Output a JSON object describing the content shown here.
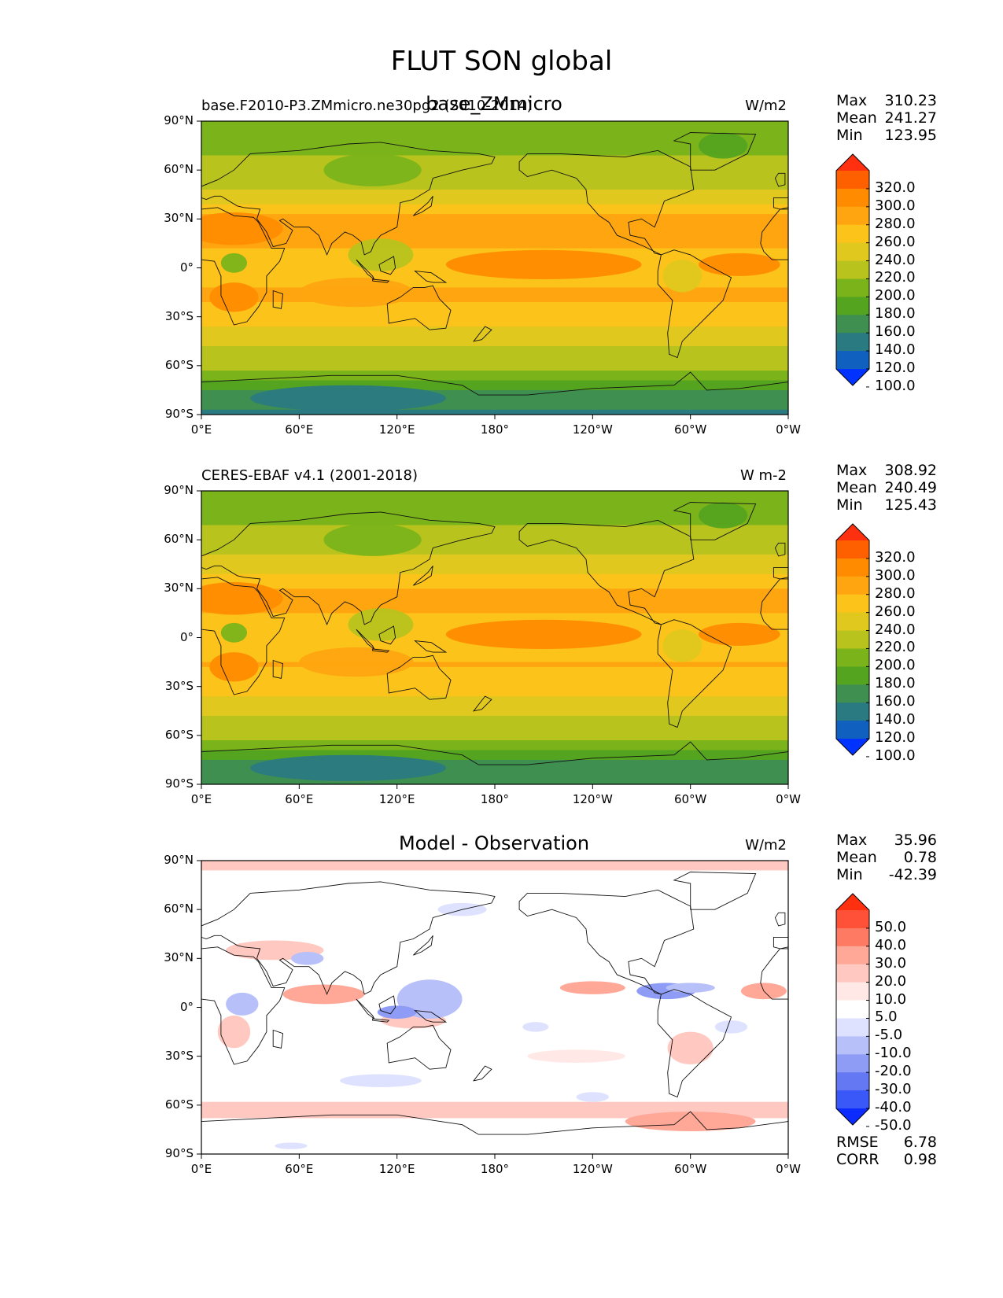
{
  "figure_title": "FLUT SON global",
  "panels": [
    {
      "id": "test",
      "left_title": "base.F2010-P3.ZMmicro.ne30pg2 (2010-2014)",
      "center_title": "base_ZMmicro",
      "units": "W/m2",
      "stats": {
        "labels": [
          "Max",
          "Mean",
          "Min"
        ],
        "values": [
          "310.23",
          "241.27",
          "123.95"
        ]
      },
      "colorbar": {
        "ticks": [
          "320.0",
          "300.0",
          "280.0",
          "260.0",
          "240.0",
          "220.0",
          "200.0",
          "180.0",
          "160.0",
          "140.0",
          "120.0",
          "100.0"
        ],
        "colors": [
          "#fe3010",
          "#fe6000",
          "#ff8c00",
          "#ffa510",
          "#fcc31a",
          "#e0c81e",
          "#b8c31e",
          "#7ab41a",
          "#55a420",
          "#3e8f50",
          "#2a7a82",
          "#1060c0",
          "#0033ff"
        ]
      }
    },
    {
      "id": "reference",
      "left_title": "CERES-EBAF v4.1 (2001-2018)",
      "center_title": "",
      "units": "W m-2",
      "stats": {
        "labels": [
          "Max",
          "Mean",
          "Min"
        ],
        "values": [
          "308.92",
          "240.49",
          "125.43"
        ]
      },
      "colorbar": {
        "ticks": [
          "320.0",
          "300.0",
          "280.0",
          "260.0",
          "240.0",
          "220.0",
          "200.0",
          "180.0",
          "160.0",
          "140.0",
          "120.0",
          "100.0"
        ],
        "colors": [
          "#fe3010",
          "#fe6000",
          "#ff8c00",
          "#ffa510",
          "#fcc31a",
          "#e0c81e",
          "#b8c31e",
          "#7ab41a",
          "#55a420",
          "#3e8f50",
          "#2a7a82",
          "#1060c0",
          "#0033ff"
        ]
      }
    },
    {
      "id": "difference",
      "left_title": "",
      "center_title": "Model - Observation",
      "units": "W/m2",
      "stats": {
        "labels": [
          "Max",
          "Mean",
          "Min"
        ],
        "values": [
          "35.96",
          "0.78",
          "-42.39"
        ]
      },
      "metrics": {
        "labels": [
          "RMSE",
          "CORR"
        ],
        "values": [
          "6.78",
          "0.98"
        ]
      },
      "colorbar": {
        "ticks": [
          "50.0",
          "40.0",
          "30.0",
          "20.0",
          "10.0",
          "5.0",
          "-5.0",
          "-10.0",
          "-20.0",
          "-30.0",
          "-40.0",
          "-50.0"
        ],
        "colors": [
          "#ff3010",
          "#ff5038",
          "#ff7a62",
          "#ffa898",
          "#ffc8c0",
          "#ffe8e6",
          "#ffffff",
          "#dee2ff",
          "#b8c0fa",
          "#8e9cf6",
          "#6478f4",
          "#3a58f8",
          "#0c2cff"
        ]
      }
    }
  ],
  "chart_data": [
    {
      "type": "heatmap",
      "title": "base_ZMmicro",
      "subtitle": "base.F2010-P3.ZMmicro.ne30pg2 (2010-2014)",
      "units": "W/m2",
      "xticks": [
        "0°E",
        "60°E",
        "120°E",
        "180°",
        "120°W",
        "60°W",
        "0°W"
      ],
      "yticks": [
        "90°N",
        "60°N",
        "30°N",
        "0°",
        "30°S",
        "60°S",
        "90°S"
      ],
      "lon_range": [
        0,
        360
      ],
      "lat_range": [
        -90,
        90
      ],
      "zonal_mean_profile": {
        "lat": [
          -90,
          -75,
          -60,
          -45,
          -30,
          -15,
          0,
          15,
          30,
          45,
          60,
          75,
          90
        ],
        "value": [
          135,
          160,
          205,
          225,
          250,
          265,
          240,
          265,
          265,
          225,
          205,
          195,
          185
        ]
      },
      "max": 310.23,
      "mean": 241.27,
      "min": 123.95
    },
    {
      "type": "heatmap",
      "title": "CERES-EBAF v4.1 (2001-2018)",
      "units": "W m-2",
      "xticks": [
        "0°E",
        "60°E",
        "120°E",
        "180°",
        "120°W",
        "60°W",
        "0°W"
      ],
      "yticks": [
        "90°N",
        "60°N",
        "30°N",
        "0°",
        "30°S",
        "60°S",
        "90°S"
      ],
      "lon_range": [
        0,
        360
      ],
      "lat_range": [
        -90,
        90
      ],
      "zonal_mean_profile": {
        "lat": [
          -90,
          -75,
          -60,
          -45,
          -30,
          -15,
          0,
          15,
          30,
          45,
          60,
          75,
          90
        ],
        "value": [
          138,
          162,
          205,
          226,
          250,
          262,
          240,
          262,
          262,
          226,
          206,
          196,
          186
        ]
      },
      "max": 308.92,
      "mean": 240.49,
      "min": 125.43
    },
    {
      "type": "heatmap",
      "title": "Model - Observation",
      "units": "W/m2",
      "xticks": [
        "0°E",
        "60°E",
        "120°E",
        "180°",
        "120°W",
        "60°W",
        "0°W"
      ],
      "yticks": [
        "90°N",
        "60°N",
        "30°N",
        "0°",
        "30°S",
        "60°S",
        "90°S"
      ],
      "lon_range": [
        0,
        360
      ],
      "lat_range": [
        -90,
        90
      ],
      "max": 35.96,
      "mean": 0.78,
      "min": -42.39,
      "rmse": 6.78,
      "corr": 0.98
    }
  ]
}
